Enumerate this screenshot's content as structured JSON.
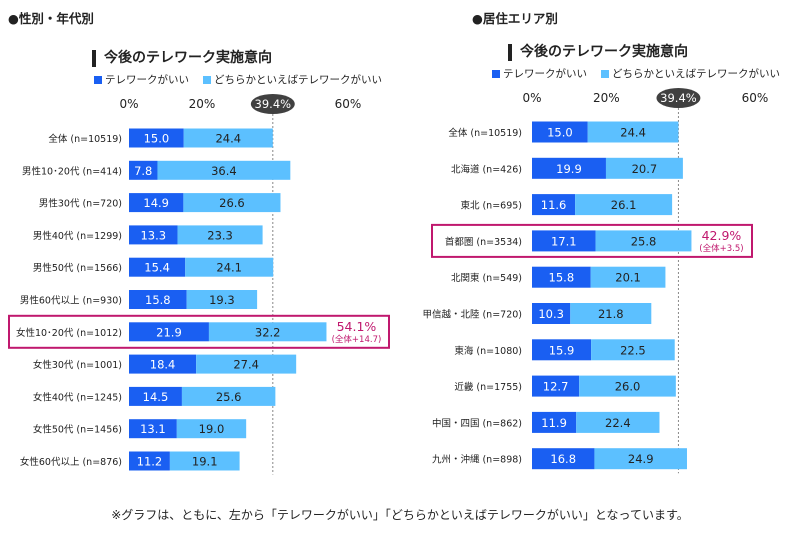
{
  "colors": {
    "series1": "#1a5ff2",
    "series2": "#5cc0ff",
    "highlight": "#c0186e",
    "total_ellipse": "#404040"
  },
  "headings": {
    "left": "●性別・年代別",
    "right": "●居住エリア別"
  },
  "footnote": "※グラフは、ともに、左から「テレワークがいい」「どちらかといえばテレワークがいい」となっています。",
  "chart_data": [
    {
      "type": "bar",
      "stacked": true,
      "orientation": "horizontal",
      "title": "今後のテレワーク実施意向",
      "legend": [
        "テレワークがいい",
        "どちらかといえばテレワークがいい"
      ],
      "xlim": [
        0,
        60
      ],
      "ticks": [
        "0%",
        "20%",
        "40%",
        "60%"
      ],
      "total_label": "39.4%",
      "categories": [
        "全体 (n=10519)",
        "男性10･20代 (n=414)",
        "男性30代 (n=720)",
        "男性40代 (n=1299)",
        "男性50代 (n=1566)",
        "男性60代以上 (n=930)",
        "女性10･20代 (n=1012)",
        "女性30代 (n=1001)",
        "女性40代 (n=1245)",
        "女性50代 (n=1456)",
        "女性60代以上 (n=876)"
      ],
      "series": [
        {
          "name": "テレワークがいい",
          "values": [
            15.0,
            7.8,
            14.9,
            13.3,
            15.4,
            15.8,
            21.9,
            18.4,
            14.5,
            13.1,
            11.2
          ]
        },
        {
          "name": "どちらかといえばテレワークがいい",
          "values": [
            24.4,
            36.4,
            26.6,
            23.3,
            24.1,
            19.3,
            32.2,
            27.4,
            25.6,
            19.0,
            19.1
          ]
        }
      ],
      "highlight": {
        "index": 6,
        "total": "54.1%",
        "note": "(全体+14.7)"
      }
    },
    {
      "type": "bar",
      "stacked": true,
      "orientation": "horizontal",
      "title": "今後のテレワーク実施意向",
      "legend": [
        "テレワークがいい",
        "どちらかといえばテレワークがいい"
      ],
      "xlim": [
        0,
        60
      ],
      "ticks": [
        "0%",
        "20%",
        "40%",
        "60%"
      ],
      "total_label": "39.4%",
      "categories": [
        "全体 (n=10519)",
        "北海道 (n=426)",
        "東北 (n=695)",
        "首都圏 (n=3534)",
        "北関東 (n=549)",
        "甲信越・北陸 (n=720)",
        "東海 (n=1080)",
        "近畿 (n=1755)",
        "中国・四国 (n=862)",
        "九州・沖縄 (n=898)"
      ],
      "series": [
        {
          "name": "テレワークがいい",
          "values": [
            15.0,
            19.9,
            11.6,
            17.1,
            15.8,
            10.3,
            15.9,
            12.7,
            11.9,
            16.8
          ]
        },
        {
          "name": "どちらかといえばテレワークがいい",
          "values": [
            24.4,
            20.7,
            26.1,
            25.8,
            20.1,
            21.8,
            22.5,
            26.0,
            22.4,
            24.9
          ]
        }
      ],
      "highlight": {
        "index": 3,
        "total": "42.9%",
        "note": "(全体+3.5)"
      }
    }
  ]
}
